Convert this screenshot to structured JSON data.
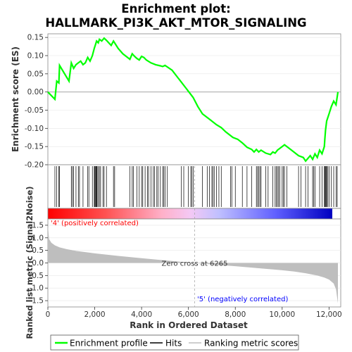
{
  "title_line1": "Enrichment plot:",
  "title_line2": "HALLMARK_PI3K_AKT_MTOR_SIGNALING",
  "colors": {
    "es_line": "#00ff00",
    "hits": "#000000",
    "metric_fill": "#bebebe",
    "pos_label": "#ff0000",
    "neg_label": "#0000ff",
    "heat_pos": "#ff0000",
    "heat_neg": "#0000ff"
  },
  "chart_data": {
    "type": "line",
    "top_panel": {
      "ylabel": "Enrichment score (ES)",
      "ylim": [
        -0.2,
        0.16
      ],
      "yticks": [
        "0.15",
        "0.10",
        "0.05",
        "0.00",
        "-0.05",
        "-0.10",
        "-0.15",
        "-0.20"
      ],
      "ytick_values": [
        0.15,
        0.1,
        0.05,
        0.0,
        -0.05,
        -0.1,
        -0.15,
        -0.2
      ],
      "series": [
        {
          "name": "Enrichment profile",
          "x": [
            0,
            300,
            380,
            470,
            500,
            900,
            1000,
            1100,
            1200,
            1300,
            1400,
            1500,
            1600,
            1700,
            1800,
            1900,
            1980,
            2030,
            2080,
            2150,
            2200,
            2300,
            2400,
            2500,
            2600,
            2700,
            2800,
            2900,
            3000,
            3200,
            3400,
            3500,
            3600,
            3700,
            3800,
            3900,
            4000,
            4100,
            4200,
            4400,
            4600,
            4800,
            4900,
            5000,
            5300,
            5600,
            5900,
            6200,
            6400,
            6600,
            6900,
            7200,
            7400,
            7600,
            7900,
            8100,
            8300,
            8500,
            8700,
            8800,
            8900,
            9000,
            9100,
            9300,
            9500,
            9600,
            9700,
            9800,
            9900,
            10000,
            10100,
            10300,
            10500,
            10700,
            10900,
            11000,
            11200,
            11300,
            11400,
            11500,
            11600,
            11700,
            11800,
            11820,
            11850,
            11900,
            12000,
            12100,
            12200,
            12300,
            12380
          ],
          "y": [
            0.0,
            -0.02,
            0.03,
            0.025,
            0.073,
            0.03,
            0.08,
            0.065,
            0.075,
            0.08,
            0.085,
            0.075,
            0.08,
            0.095,
            0.085,
            0.1,
            0.12,
            0.13,
            0.14,
            0.135,
            0.145,
            0.14,
            0.148,
            0.142,
            0.135,
            0.128,
            0.14,
            0.13,
            0.12,
            0.105,
            0.095,
            0.09,
            0.105,
            0.098,
            0.092,
            0.088,
            0.098,
            0.095,
            0.088,
            0.08,
            0.075,
            0.072,
            0.07,
            0.073,
            0.06,
            0.035,
            0.01,
            -0.015,
            -0.04,
            -0.06,
            -0.075,
            -0.09,
            -0.098,
            -0.11,
            -0.125,
            -0.13,
            -0.14,
            -0.152,
            -0.158,
            -0.165,
            -0.158,
            -0.165,
            -0.16,
            -0.168,
            -0.172,
            -0.165,
            -0.168,
            -0.16,
            -0.155,
            -0.15,
            -0.145,
            -0.155,
            -0.165,
            -0.175,
            -0.18,
            -0.19,
            -0.175,
            -0.185,
            -0.17,
            -0.18,
            -0.16,
            -0.17,
            -0.15,
            -0.13,
            -0.105,
            -0.08,
            -0.06,
            -0.04,
            -0.025,
            -0.035,
            0.0
          ]
        }
      ]
    },
    "hits_panel": {
      "name": "Hits",
      "positions": [
        300,
        380,
        470,
        500,
        1000,
        1050,
        1100,
        1200,
        1300,
        1350,
        1500,
        1700,
        1750,
        1900,
        1980,
        2000,
        2030,
        2060,
        2080,
        2100,
        2150,
        2200,
        2250,
        2350,
        2400,
        2500,
        2800,
        2850,
        3500,
        3600,
        3650,
        3800,
        3900,
        4000,
        4050,
        4150,
        4250,
        4300,
        4400,
        4500,
        4550,
        4650,
        4700,
        4800,
        4900,
        4950,
        5000,
        5100,
        5700,
        5800,
        6000,
        6100,
        6150,
        6200,
        6600,
        6800,
        6900,
        7000,
        7050,
        7100,
        7200,
        7300,
        7400,
        7800,
        7850,
        8000,
        8300,
        8500,
        8700,
        8900,
        8950,
        9000,
        9050,
        9100,
        9300,
        9400,
        9600,
        9700,
        9750,
        9800,
        9850,
        9900,
        10000,
        10050,
        10100,
        10200,
        10700,
        10800,
        11000,
        11100,
        11300,
        11350,
        11400,
        11600,
        11700,
        11800,
        11820,
        11850,
        11880,
        11900,
        11950,
        12000,
        12100,
        12200,
        12300,
        12350
      ]
    },
    "bottom_panel": {
      "ylabel": "Ranked list metric (Signal2Noise)",
      "xlabel": "Rank in Ordered Dataset",
      "ylim": [
        -1.75,
        1.75
      ],
      "yticks": [
        "1.5",
        "1.0",
        "0.5",
        "0.0",
        "-0.5",
        "-1.0",
        "-1.5"
      ],
      "ytick_values": [
        1.5,
        1.0,
        0.5,
        0.0,
        -0.5,
        -1.0,
        -1.5
      ],
      "xlim": [
        0,
        12500
      ],
      "xticks": [
        "0",
        "2,000",
        "4,000",
        "6,000",
        "8,000",
        "10,000",
        "12,000"
      ],
      "xtick_values": [
        0,
        2000,
        4000,
        6000,
        8000,
        10000,
        12000
      ],
      "metric_x": [
        0,
        50,
        150,
        300,
        500,
        800,
        1200,
        2000,
        3000,
        4000,
        5000,
        6265,
        7000,
        8000,
        9000,
        10000,
        10500,
        11000,
        11500,
        11800,
        12000,
        12200,
        12300,
        12380
      ],
      "metric_y": [
        1.5,
        0.95,
        0.8,
        0.7,
        0.62,
        0.55,
        0.48,
        0.38,
        0.28,
        0.19,
        0.1,
        0.0,
        -0.06,
        -0.13,
        -0.21,
        -0.29,
        -0.34,
        -0.41,
        -0.5,
        -0.58,
        -0.66,
        -0.82,
        -1.05,
        -1.6
      ]
    },
    "zero_cross_label": "Zero cross at 6265",
    "zero_cross": 6265,
    "pos_label": "'4' (positively correlated)",
    "neg_label": "'5' (negatively correlated)",
    "n_genes": 12380
  },
  "legend": {
    "items": [
      {
        "label": "Enrichment profile",
        "kind": "green-line"
      },
      {
        "label": "Hits",
        "kind": "black-line"
      },
      {
        "label": "Ranking metric scores",
        "kind": "gray-line"
      }
    ]
  }
}
